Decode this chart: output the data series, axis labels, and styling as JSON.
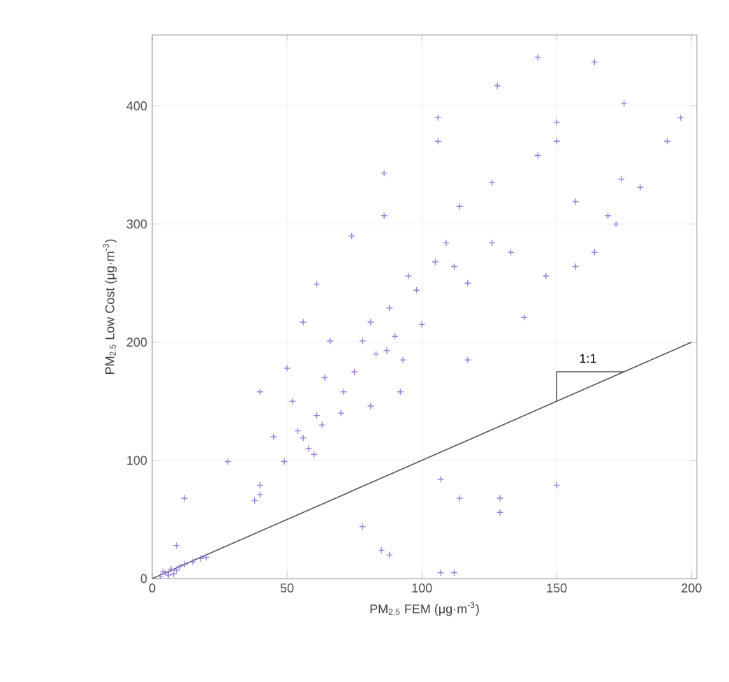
{
  "chart_data": {
    "type": "scatter",
    "xlabel": "PM$_{2.5}$ FEM (μg·m$^{-3}$)",
    "ylabel": "PM$_{2.5}$ Low Cost (μg·m$^{-3}$)",
    "xlim": [
      0,
      202
    ],
    "ylim": [
      0,
      460
    ],
    "xticks": [
      0,
      50,
      100,
      150,
      200
    ],
    "yticks": [
      0,
      100,
      200,
      300,
      400
    ],
    "grid": true,
    "annotations": [
      "1:1"
    ],
    "series": [
      {
        "marker": "cross",
        "color": "#9a7fe0",
        "x": [
          3,
          5,
          7,
          8,
          10,
          12,
          15,
          18,
          20,
          6,
          4,
          9,
          12,
          9,
          28,
          40,
          38,
          40,
          40,
          49,
          56,
          61,
          50,
          64,
          71,
          81,
          92,
          78,
          87,
          93,
          56,
          66,
          81,
          88,
          95,
          98,
          105,
          109,
          114,
          61,
          74,
          86,
          86,
          106,
          106,
          117,
          112,
          117,
          107,
          114,
          129,
          129,
          150,
          78,
          85,
          88,
          112,
          107,
          128,
          143,
          164,
          175,
          150,
          150,
          143,
          157,
          164,
          157,
          146,
          138,
          126,
          126,
          133,
          181,
          169,
          172,
          174,
          191,
          196,
          58,
          54,
          60,
          63,
          70,
          75,
          83,
          90,
          100,
          45,
          52
        ],
        "values": [
          2,
          5,
          8,
          4,
          10,
          12,
          14,
          17,
          18,
          3,
          6,
          7,
          68,
          28,
          99,
          158,
          66,
          71,
          79,
          99,
          119,
          138,
          178,
          170,
          158,
          146,
          158,
          201,
          193,
          185,
          217,
          201,
          217,
          229,
          256,
          244,
          268,
          284,
          315,
          249,
          290,
          343,
          307,
          390,
          370,
          250,
          264,
          185,
          84,
          68,
          68,
          56,
          79,
          44,
          24,
          20,
          5,
          5,
          417,
          441,
          437,
          402,
          386,
          370,
          358,
          319,
          276,
          264,
          256,
          221,
          335,
          284,
          276,
          331,
          307,
          300,
          338,
          370,
          390,
          110,
          125,
          105,
          130,
          140,
          175,
          190,
          205,
          215,
          120,
          150
        ]
      },
      {
        "type": "line",
        "color": "#555555",
        "x": [
          0,
          200
        ],
        "values": [
          0,
          200
        ]
      },
      {
        "type": "line",
        "color": "#555555",
        "x": [
          150,
          150,
          175
        ],
        "values": [
          150,
          175,
          175
        ]
      }
    ]
  }
}
